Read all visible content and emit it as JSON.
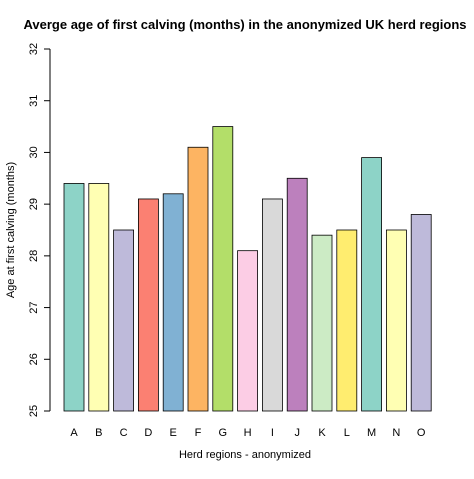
{
  "chart_data": {
    "type": "bar",
    "title": "Averge age of first calving (months) in the anonymized UK herd regions",
    "xlabel": "Herd regions - anonymized",
    "ylabel": "Age at first calving (months)",
    "ylim": [
      25,
      32
    ],
    "yticks": [
      "25",
      "26",
      "27",
      "28",
      "29",
      "30",
      "31",
      "32"
    ],
    "categories": [
      "A",
      "B",
      "C",
      "D",
      "E",
      "F",
      "G",
      "H",
      "I",
      "J",
      "K",
      "L",
      "M",
      "N",
      "O"
    ],
    "values": [
      29.4,
      29.4,
      28.5,
      29.1,
      29.2,
      30.1,
      30.5,
      28.1,
      29.1,
      29.5,
      28.4,
      28.5,
      29.9,
      28.5,
      28.8
    ],
    "colors": [
      "#8DD3C7",
      "#FFFFB3",
      "#BEBADA",
      "#FB8072",
      "#80B1D3",
      "#FDB462",
      "#B3DE69",
      "#FCCDE5",
      "#D9D9D9",
      "#BC80BD",
      "#CCEBC5",
      "#FFED6F",
      "#8DD3C7",
      "#FFFFB3",
      "#BEBADA"
    ],
    "grid": false,
    "legend": "none"
  }
}
